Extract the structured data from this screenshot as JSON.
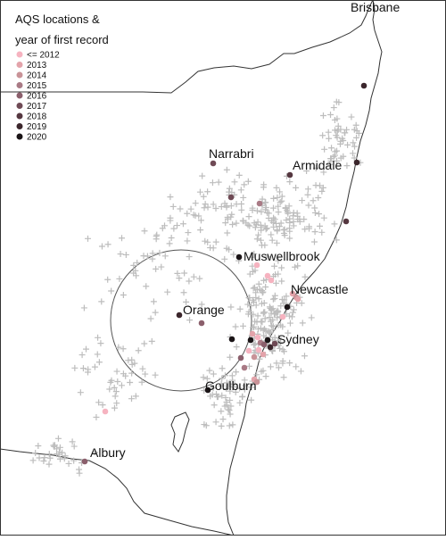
{
  "legend": {
    "title_line1": "AQS locations &",
    "title_line2": "year of first record",
    "entries": [
      {
        "label": "<= 2012",
        "color": "#f6b3c0"
      },
      {
        "label": "2013",
        "color": "#e3a3aa"
      },
      {
        "label": "2014",
        "color": "#c99398"
      },
      {
        "label": "2015",
        "color": "#a97a85"
      },
      {
        "label": "2016",
        "color": "#8b5f6c"
      },
      {
        "label": "2017",
        "color": "#6f4a55"
      },
      {
        "label": "2018",
        "color": "#553740"
      },
      {
        "label": "2019",
        "color": "#3b262c"
      },
      {
        "label": "2020",
        "color": "#1a1416"
      }
    ]
  },
  "places": {
    "brisbane": "Brisbane",
    "narrabri": "Narrabri",
    "armidale": "Armidale",
    "muswellbrook": "Muswellbrook",
    "newcastle": "Newcastle",
    "orange": "Orange",
    "sydney": "Sydney",
    "goulburn": "Goulburn",
    "albury": "Albury"
  },
  "colors": {
    "background": "#ffffff",
    "boundary": "#333333",
    "cross_marker": "#bdbdbd",
    "circle": "#555555"
  },
  "markers": {
    "aqs_station": "filled-circle",
    "background_sites": "plus-sign"
  }
}
